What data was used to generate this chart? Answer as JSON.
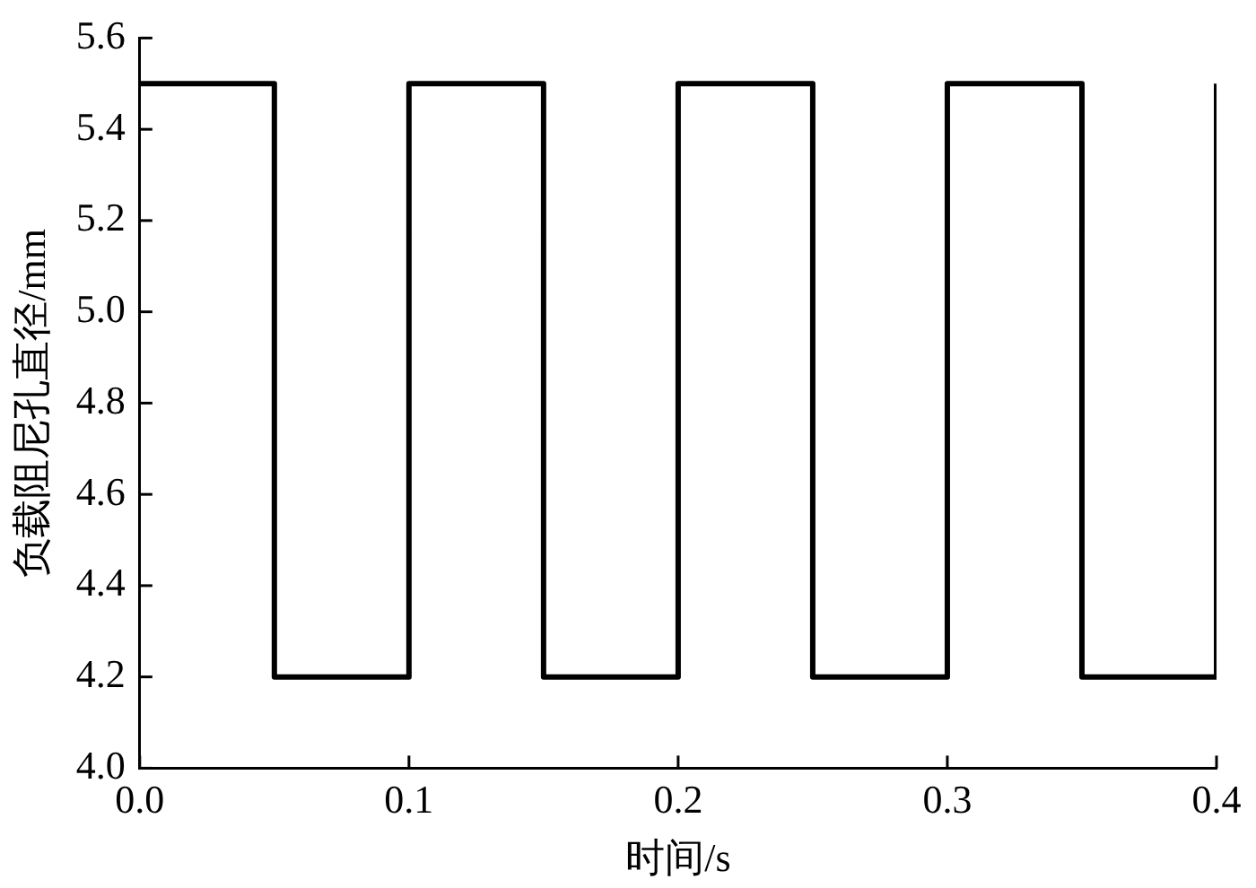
{
  "chart_data": {
    "type": "line",
    "xlabel": "时间/s",
    "ylabel": "负载阻尼孔直径/mm",
    "x": [
      0,
      0.05,
      0.05,
      0.1,
      0.1,
      0.15,
      0.15,
      0.2,
      0.2,
      0.25,
      0.25,
      0.3,
      0.3,
      0.35,
      0.35,
      0.4,
      0.4
    ],
    "series": [
      {
        "color": "#000000",
        "values": [
          5.5,
          5.5,
          4.2,
          4.2,
          5.5,
          5.5,
          4.2,
          4.2,
          5.5,
          5.5,
          4.2,
          4.2,
          5.5,
          5.5,
          4.2,
          4.2,
          5.5
        ]
      }
    ],
    "xlim": [
      0,
      0.4
    ],
    "xticks": [
      {
        "value": 0,
        "label": "0.0"
      },
      0.1,
      0.2,
      0.3,
      0.4
    ],
    "ylim": [
      4,
      5.6
    ],
    "yticks": [
      {
        "value": 4,
        "label": "4.0"
      },
      4.2,
      4.4,
      4.6,
      4.8,
      {
        "value": 5,
        "label": "5.0"
      },
      5.2,
      5.4,
      5.6
    ],
    "grid": false,
    "legend": false,
    "marker": "none",
    "line_style": "solid"
  }
}
